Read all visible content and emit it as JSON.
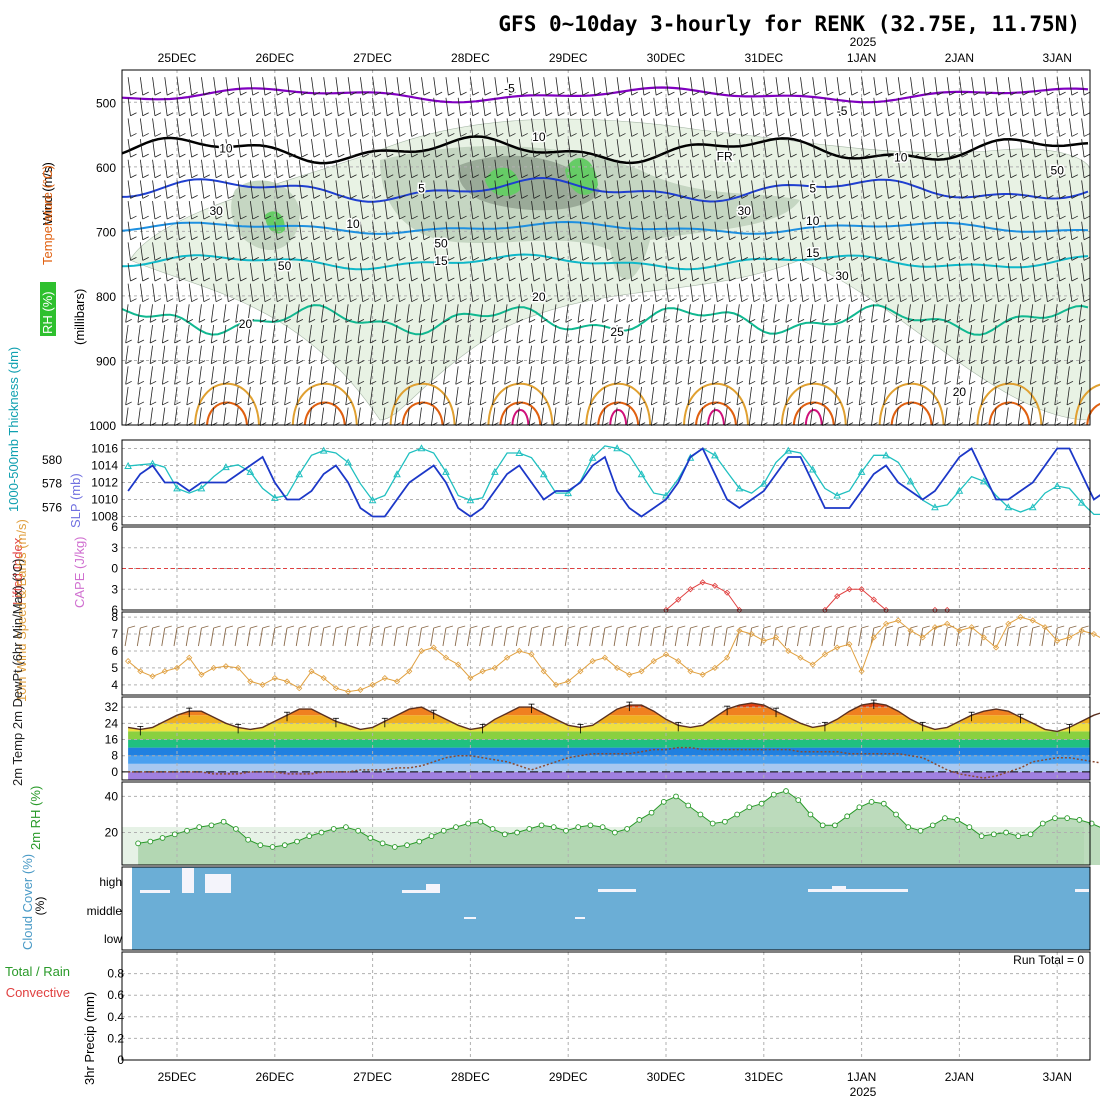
{
  "title": "GFS 0~10day 3-hourly for RENK (32.75E, 11.75N)",
  "year_label": "2025",
  "date_labels": [
    "25DEC",
    "26DEC",
    "27DEC",
    "28DEC",
    "29DEC",
    "30DEC",
    "31DEC",
    "1JAN",
    "2JAN",
    "3JAN"
  ],
  "colors": {
    "temp_neg": "#8000c0",
    "temp_zero": "#000000",
    "temp_5": "#1f3fd0",
    "temp_10": "#1e90e0",
    "temp_15": "#10b8c8",
    "temp_20": "#10b890",
    "temp_25": "#e0a030",
    "temp_30": "#e06010",
    "temp_35": "#d0107a",
    "rh_light": "#e8f2e4",
    "rh_mid": "#c5d6c2",
    "rh_dark": "#9aaa98",
    "rh_green": "#66cc66",
    "slp": "#1c38c8",
    "thickness": "#20c0c0",
    "li": "#e04040",
    "wind": "#e0a040",
    "barb": "#8a6a4a",
    "rh2m_fill": "#98c898",
    "rh2m_line": "#2a9a2a",
    "cloud": "#6baed6"
  },
  "chart_data": [
    {
      "type": "line",
      "panel": "upper-air",
      "ylabel": "(millibars)",
      "ylabel_title": "Wind (m/s)",
      "ylabel_temperature": "Temperature (°C)",
      "ylabel_rh": "RH (%)",
      "y_ticks": [
        500,
        600,
        700,
        800,
        900,
        1000
      ],
      "ylim": [
        1000,
        450
      ],
      "contour_labels": [
        {
          "text": "-5",
          "x": 3.9,
          "p": 485
        },
        {
          "text": "-5",
          "x": 7.3,
          "p": 520
        },
        {
          "text": "FR",
          "x": 6.1,
          "p": 590
        },
        {
          "text": "5",
          "x": 3.0,
          "p": 640
        },
        {
          "text": "5",
          "x": 7.0,
          "p": 640
        },
        {
          "text": "10",
          "x": 2.3,
          "p": 695
        },
        {
          "text": "10",
          "x": 7.0,
          "p": 690
        },
        {
          "text": "15",
          "x": 3.2,
          "p": 752
        },
        {
          "text": "15",
          "x": 7.0,
          "p": 740
        },
        {
          "text": "20",
          "x": 1.2,
          "p": 850
        },
        {
          "text": "20",
          "x": 4.2,
          "p": 808
        },
        {
          "text": "20",
          "x": 8.5,
          "p": 955
        },
        {
          "text": "25",
          "x": 5.0,
          "p": 862
        },
        {
          "text": "10",
          "x": 1.0,
          "p": 578
        },
        {
          "text": "10",
          "x": 4.2,
          "p": 560
        },
        {
          "text": "10",
          "x": 7.9,
          "p": 592
        },
        {
          "text": "30",
          "x": 0.9,
          "p": 675
        },
        {
          "text": "50",
          "x": 1.6,
          "p": 760
        },
        {
          "text": "50",
          "x": 3.2,
          "p": 725
        },
        {
          "text": "30",
          "x": 6.3,
          "p": 675
        },
        {
          "text": "30",
          "x": 7.3,
          "p": 775
        },
        {
          "text": "50",
          "x": 9.5,
          "p": 612
        }
      ]
    },
    {
      "type": "line",
      "panel": "slp-thickness",
      "ylabel_right": "SLP (mb)",
      "ylabel_left": "1000-500mb Thickness (dm)",
      "slp_ticks": [
        1008,
        1010,
        1012,
        1014,
        1016
      ],
      "slp_lim": [
        1007,
        1017
      ],
      "thk_ticks": [
        576,
        578,
        580
      ],
      "thk_lim": [
        574.5,
        581.7
      ],
      "series": [
        {
          "name": "SLP",
          "values": [
            1011,
            1013,
            1014,
            1012,
            1012,
            1011,
            1012,
            1012,
            1012,
            1013,
            1014,
            1015,
            1012,
            1010,
            1010,
            1011,
            1013,
            1014,
            1012,
            1009,
            1008,
            1008,
            1010,
            1012,
            1013,
            1014,
            1012,
            1009,
            1008,
            1009,
            1011,
            1013,
            1014,
            1012,
            1010,
            1011,
            1011,
            1012,
            1014,
            1015,
            1011,
            1009,
            1008,
            1009,
            1010,
            1012,
            1015,
            1016,
            1013,
            1010,
            1009,
            1010,
            1011,
            1013,
            1015,
            1015,
            1012,
            1009,
            1009,
            1009,
            1011,
            1013,
            1014,
            1012,
            1011,
            1010,
            1011,
            1013,
            1015,
            1016,
            1013,
            1010,
            1010,
            1011,
            1012,
            1014,
            1016,
            1016,
            1013,
            1010,
            1011,
            1012,
            1013,
            1014,
            1013,
            1012,
            1011,
            1011,
            1012,
            1014,
            1016,
            1015
          ]
        },
        {
          "name": "Thickness",
          "values": [
            579.5,
            579.6,
            579.7,
            579.4,
            577.6,
            577.2,
            577.6,
            578.6,
            579.4,
            579.6,
            579.0,
            577.6,
            576.8,
            577.0,
            578.8,
            580.4,
            580.8,
            580.6,
            579.8,
            578.0,
            576.6,
            577.0,
            578.8,
            580.6,
            581.0,
            580.6,
            579.0,
            577.0,
            576.6,
            576.8,
            579.0,
            580.6,
            580.6,
            580.2,
            578.8,
            577.2,
            577.2,
            578.2,
            580.2,
            581.2,
            581.0,
            580.4,
            578.8,
            577.2,
            577.0,
            578.4,
            580.2,
            581.0,
            580.4,
            579.0,
            577.6,
            577.2,
            578.0,
            579.8,
            580.8,
            580.6,
            579.2,
            577.6,
            577.0,
            577.4,
            579.0,
            580.4,
            580.4,
            579.8,
            578.2,
            576.6,
            576.0,
            576.2,
            577.4,
            578.6,
            578.2,
            577.0,
            576.0,
            575.6,
            576.0,
            577.2,
            577.8,
            577.6,
            576.4,
            575.4,
            575.4,
            576.0,
            577.0,
            577.8,
            577.4,
            576.8,
            576.2,
            576.0,
            576.4,
            577.0,
            577.0,
            576.4
          ]
        }
      ]
    },
    {
      "type": "line",
      "panel": "lifted-index-cape",
      "ylabel_left": "Lifted Index",
      "ylabel_right": "CAPE (J/kg)",
      "y_ticks": [
        -6,
        -3,
        0,
        3,
        6
      ],
      "y_tick_labels": [
        "6",
        "3",
        "0",
        "3",
        "6"
      ],
      "ylim": [
        -6,
        6
      ],
      "series": [
        {
          "name": "LI",
          "values": [
            null,
            null,
            null,
            null,
            null,
            null,
            null,
            null,
            null,
            null,
            null,
            null,
            null,
            null,
            null,
            null,
            null,
            null,
            null,
            null,
            null,
            null,
            null,
            null,
            null,
            null,
            null,
            null,
            null,
            null,
            null,
            null,
            null,
            null,
            null,
            null,
            null,
            null,
            null,
            null,
            null,
            null,
            null,
            null,
            6,
            4.5,
            3,
            2,
            2.5,
            3.5,
            6,
            null,
            null,
            null,
            null,
            null,
            null,
            6,
            4,
            3,
            3,
            4.5,
            6,
            null,
            null,
            null,
            6,
            6,
            null,
            null,
            null,
            null,
            null,
            null,
            null,
            null,
            null,
            null,
            null,
            null,
            null,
            null,
            null,
            null,
            null,
            null,
            null,
            null,
            null,
            null,
            null,
            null
          ]
        }
      ]
    },
    {
      "type": "line",
      "panel": "10m-wind",
      "ylabel": "10m Wind Speed & Barbs (m/s)",
      "y_ticks": [
        4,
        5,
        6,
        7,
        8
      ],
      "ylim": [
        3.4,
        8.3
      ],
      "series": [
        {
          "name": "Speed",
          "values": [
            5.4,
            4.8,
            4.5,
            4.8,
            5.0,
            5.6,
            4.6,
            5.0,
            5.1,
            5.0,
            4.2,
            4.0,
            4.4,
            4.2,
            3.8,
            4.8,
            4.4,
            3.8,
            3.6,
            3.7,
            4.0,
            4.4,
            4.2,
            4.8,
            6.0,
            6.2,
            5.6,
            5.2,
            4.4,
            4.8,
            5.0,
            5.6,
            6.0,
            5.8,
            4.8,
            4.0,
            4.2,
            4.8,
            5.4,
            5.6,
            5.0,
            4.6,
            4.8,
            5.4,
            5.8,
            5.4,
            4.8,
            4.6,
            5.0,
            5.6,
            7.2,
            7.0,
            6.6,
            6.8,
            6.0,
            5.6,
            5.2,
            5.8,
            6.2,
            6.4,
            4.8,
            6.8,
            7.6,
            7.8,
            7.2,
            6.8,
            7.4,
            7.6,
            7.2,
            7.4,
            6.8,
            6.2,
            7.6,
            8.0,
            7.8,
            7.4,
            6.6,
            6.8,
            7.2,
            7.0,
            6.6,
            6.4,
            7.4,
            8.0,
            6.8,
            5.4,
            6.2,
            6.8,
            6.6,
            5.8,
            5.0,
            5.6
          ]
        }
      ]
    },
    {
      "type": "area",
      "panel": "2m-temp",
      "ylabel": "2m Temp 2m DewPt (6hr Min/Max) (°C)",
      "y_ticks": [
        0,
        8,
        16,
        24,
        32
      ],
      "ylim": [
        -4,
        37
      ],
      "series": [
        {
          "name": "2m Temp",
          "values": [
            22,
            21,
            22,
            25,
            28,
            30,
            30,
            27,
            24,
            22,
            21,
            22,
            25,
            28,
            31,
            31,
            28,
            25,
            23,
            21,
            22,
            25,
            28,
            31,
            32,
            29,
            26,
            23,
            21,
            22,
            26,
            29,
            32,
            32,
            29,
            26,
            23,
            22,
            23,
            27,
            31,
            33,
            33,
            30,
            26,
            23,
            22,
            23,
            27,
            31,
            33,
            34,
            33,
            30,
            27,
            24,
            22,
            23,
            26,
            30,
            33,
            34,
            33,
            30,
            26,
            23,
            21,
            22,
            25,
            28,
            30,
            31,
            30,
            27,
            24,
            21,
            20,
            22,
            25,
            28,
            30,
            30,
            28,
            25,
            22,
            20,
            22,
            25,
            28,
            31,
            30,
            28,
            25,
            23,
            22,
            21
          ]
        },
        {
          "name": "2m DewPt",
          "values": [
            0,
            0,
            0,
            0,
            0,
            0,
            0,
            -1,
            -1,
            -1,
            0,
            0,
            0,
            -1,
            -1,
            -1,
            0,
            0,
            0,
            1,
            1,
            1,
            2,
            2,
            3,
            5,
            7,
            8,
            8,
            7,
            6,
            5,
            3,
            1,
            3,
            5,
            7,
            8,
            9,
            9,
            9,
            9,
            10,
            11,
            11,
            12,
            12,
            11,
            11,
            11,
            11,
            11,
            11,
            11,
            11,
            10,
            10,
            10,
            10,
            9,
            9,
            9,
            9,
            9,
            8,
            7,
            4,
            1,
            -1,
            -2,
            -3,
            -2,
            0,
            2,
            5,
            6,
            7,
            7,
            6,
            5,
            4,
            2,
            0,
            -1,
            2,
            4,
            4,
            3,
            2,
            1,
            1,
            1
          ]
        }
      ]
    },
    {
      "type": "area",
      "panel": "2m-rh",
      "ylabel": "2m RH (%)",
      "y_ticks": [
        20,
        40
      ],
      "ylim": [
        2,
        48
      ],
      "series": [
        {
          "name": "2m RH",
          "values": [
            14,
            15,
            17,
            19,
            21,
            23,
            24,
            26,
            22,
            16,
            13,
            12,
            13,
            15,
            18,
            20,
            22,
            23,
            21,
            17,
            14,
            12,
            13,
            15,
            18,
            21,
            23,
            25,
            26,
            22,
            19,
            20,
            22,
            24,
            23,
            21,
            23,
            24,
            23,
            20,
            22,
            27,
            31,
            37,
            40,
            35,
            30,
            25,
            26,
            30,
            34,
            36,
            41,
            43,
            38,
            30,
            24,
            24,
            29,
            34,
            37,
            36,
            30,
            23,
            21,
            24,
            28,
            27,
            23,
            18,
            19,
            20,
            18,
            19,
            25,
            28,
            28,
            27,
            25,
            22,
            21,
            20,
            21,
            22,
            24,
            22,
            22,
            21
          ]
        }
      ]
    },
    {
      "type": "bar",
      "panel": "cloud-cover",
      "ylabel": "Cloud Cover (%)",
      "categories": [
        "high",
        "middle",
        "low"
      ]
    },
    {
      "type": "bar",
      "panel": "precip",
      "ylabel": "3hr Precip (mm)",
      "ylabel_total": "Total / Rain",
      "ylabel_convective": "Convective",
      "y_ticks": [
        0,
        0.2,
        0.4,
        0.6,
        0.8
      ],
      "ylim": [
        0,
        1.0
      ],
      "run_total": "Run Total = 0"
    }
  ]
}
